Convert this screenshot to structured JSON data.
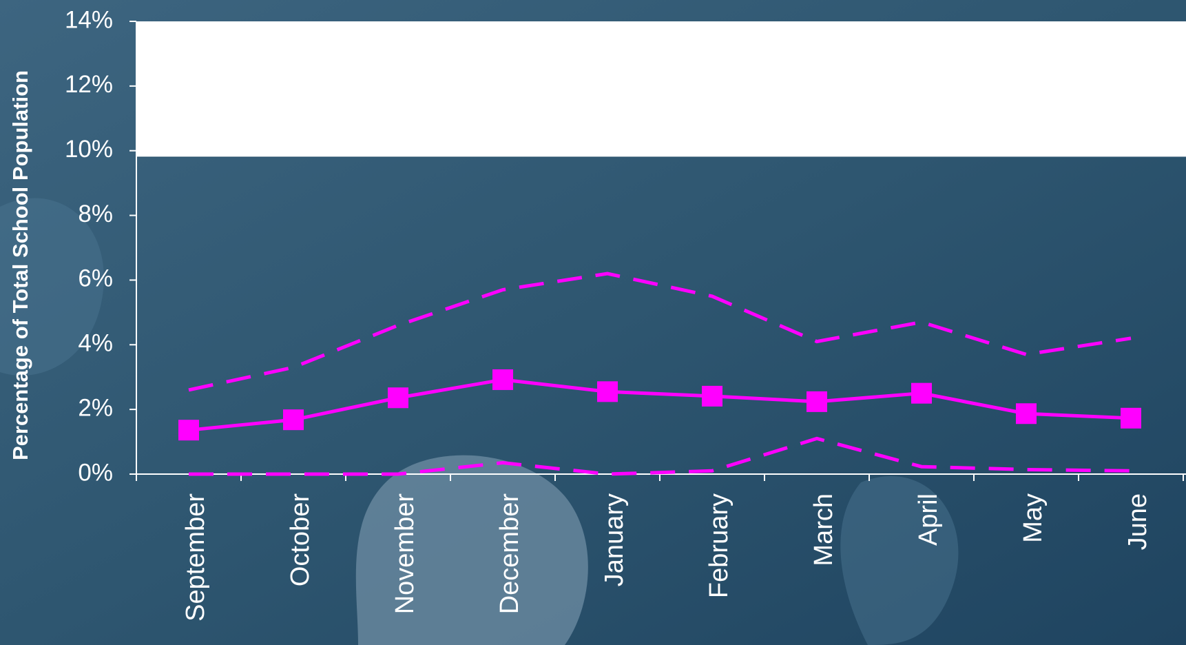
{
  "chart_data": {
    "type": "line",
    "ylabel": "Percentage of Total School Population",
    "categories": [
      "September",
      "October",
      "November",
      "December",
      "January",
      "February",
      "March",
      "April",
      "May",
      "June"
    ],
    "series": [
      {
        "color": "#ff00ff",
        "dash": true,
        "values": [
          2.6,
          3.3,
          4.6,
          5.7,
          6.2,
          5.5,
          4.1,
          4.7,
          3.7,
          4.2
        ]
      },
      {
        "color": "#ff00ff",
        "dash": false,
        "marker": "square",
        "values": [
          1.36,
          1.68,
          2.36,
          2.92,
          2.55,
          2.41,
          2.24,
          2.5,
          1.87,
          1.73
        ]
      },
      {
        "color": "#ff00ff",
        "dash": true,
        "values": [
          0,
          0,
          0,
          0.35,
          0,
          0.1,
          1.1,
          0.23,
          0.14,
          0.1
        ]
      }
    ],
    "reference_line": 9.8,
    "ylim": [
      0,
      14
    ],
    "yticks": [
      {
        "value": 0,
        "label": "0%"
      },
      {
        "value": 2,
        "label": "2%"
      },
      {
        "value": 4,
        "label": "4%"
      },
      {
        "value": 6,
        "label": "6%"
      },
      {
        "value": 8,
        "label": "8%"
      },
      {
        "value": 10,
        "label": "10%"
      },
      {
        "value": 12,
        "label": "12%"
      },
      {
        "value": 14,
        "label": "14%"
      }
    ]
  }
}
